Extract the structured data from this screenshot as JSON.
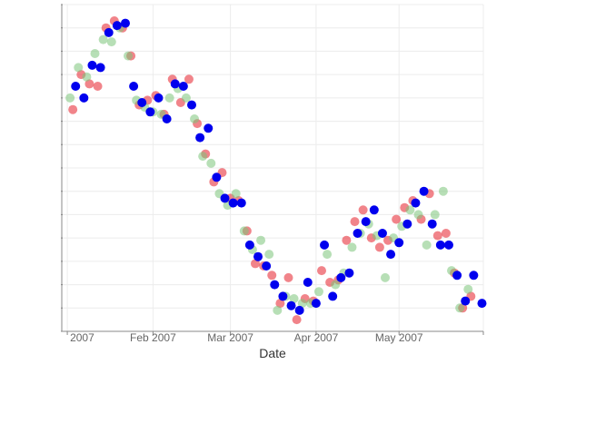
{
  "chart_data": {
    "type": "scatter",
    "title": "",
    "xlabel": "Date",
    "ylabel": "",
    "x_ticks": [
      {
        "date": "2007-01-01",
        "label": "2007"
      },
      {
        "date": "2007-02-01",
        "label": "Feb 2007"
      },
      {
        "date": "2007-03-01",
        "label": "Mar 2007"
      },
      {
        "date": "2007-04-01",
        "label": "Apr 2007"
      },
      {
        "date": "2007-05-01",
        "label": "May 2007"
      }
    ],
    "xlim": [
      "2007-01-01",
      "2007-05-31"
    ],
    "ylim": [
      0,
      14
    ],
    "y_tick_count": 14,
    "y_tick_labels_visible": false,
    "grid": true,
    "legend": "none",
    "series": [
      {
        "color": "#e8323c",
        "opacity": 0.6,
        "points": [
          [
            "2007-01-03",
            9.5
          ],
          [
            "2007-01-06",
            11.0
          ],
          [
            "2007-01-09",
            10.6
          ],
          [
            "2007-01-12",
            10.5
          ],
          [
            "2007-01-15",
            13.0
          ],
          [
            "2007-01-18",
            13.3
          ],
          [
            "2007-01-21",
            13.0
          ],
          [
            "2007-01-24",
            11.8
          ],
          [
            "2007-01-27",
            9.7
          ],
          [
            "2007-01-30",
            9.9
          ],
          [
            "2007-02-02",
            10.1
          ],
          [
            "2007-02-05",
            9.3
          ],
          [
            "2007-02-08",
            10.8
          ],
          [
            "2007-02-11",
            9.8
          ],
          [
            "2007-02-14",
            10.8
          ],
          [
            "2007-02-17",
            8.9
          ],
          [
            "2007-02-20",
            7.6
          ],
          [
            "2007-02-23",
            6.4
          ],
          [
            "2007-02-26",
            6.8
          ],
          [
            "2007-03-01",
            5.7
          ],
          [
            "2007-03-04",
            5.6
          ],
          [
            "2007-03-07",
            4.3
          ],
          [
            "2007-03-10",
            2.9
          ],
          [
            "2007-03-13",
            2.8
          ],
          [
            "2007-03-16",
            2.4
          ],
          [
            "2007-03-19",
            1.2
          ],
          [
            "2007-03-22",
            2.3
          ],
          [
            "2007-03-25",
            0.5
          ],
          [
            "2007-03-28",
            1.4
          ],
          [
            "2007-03-31",
            1.3
          ],
          [
            "2007-04-03",
            2.6
          ],
          [
            "2007-04-06",
            2.1
          ],
          [
            "2007-04-09",
            2.2
          ],
          [
            "2007-04-12",
            3.9
          ],
          [
            "2007-04-15",
            4.7
          ],
          [
            "2007-04-18",
            5.2
          ],
          [
            "2007-04-21",
            4.0
          ],
          [
            "2007-04-24",
            3.6
          ],
          [
            "2007-04-27",
            3.9
          ],
          [
            "2007-04-30",
            4.8
          ],
          [
            "2007-05-03",
            5.3
          ],
          [
            "2007-05-06",
            5.6
          ],
          [
            "2007-05-09",
            4.8
          ],
          [
            "2007-05-12",
            5.9
          ],
          [
            "2007-05-15",
            4.1
          ],
          [
            "2007-05-18",
            4.2
          ],
          [
            "2007-05-21",
            2.5
          ],
          [
            "2007-05-24",
            1.0
          ],
          [
            "2007-05-27",
            1.5
          ]
        ]
      },
      {
        "color": "#7cc47a",
        "opacity": 0.55,
        "points": [
          [
            "2007-01-02",
            10.0
          ],
          [
            "2007-01-05",
            11.3
          ],
          [
            "2007-01-08",
            10.9
          ],
          [
            "2007-01-11",
            11.9
          ],
          [
            "2007-01-14",
            12.5
          ],
          [
            "2007-01-17",
            12.4
          ],
          [
            "2007-01-20",
            13.0
          ],
          [
            "2007-01-23",
            11.8
          ],
          [
            "2007-01-26",
            9.9
          ],
          [
            "2007-01-29",
            9.6
          ],
          [
            "2007-02-01",
            9.4
          ],
          [
            "2007-02-04",
            9.3
          ],
          [
            "2007-02-07",
            10.0
          ],
          [
            "2007-02-10",
            10.4
          ],
          [
            "2007-02-13",
            10.0
          ],
          [
            "2007-02-16",
            9.1
          ],
          [
            "2007-02-19",
            7.5
          ],
          [
            "2007-02-22",
            7.2
          ],
          [
            "2007-02-25",
            5.9
          ],
          [
            "2007-02-28",
            5.4
          ],
          [
            "2007-03-03",
            5.9
          ],
          [
            "2007-03-06",
            4.3
          ],
          [
            "2007-03-09",
            3.5
          ],
          [
            "2007-03-12",
            3.9
          ],
          [
            "2007-03-15",
            3.3
          ],
          [
            "2007-03-18",
            0.9
          ],
          [
            "2007-03-21",
            1.5
          ],
          [
            "2007-03-24",
            1.4
          ],
          [
            "2007-03-27",
            1.2
          ],
          [
            "2007-03-30",
            1.2
          ],
          [
            "2007-04-02",
            1.7
          ],
          [
            "2007-04-05",
            3.3
          ],
          [
            "2007-04-08",
            2.0
          ],
          [
            "2007-04-11",
            2.5
          ],
          [
            "2007-04-14",
            3.6
          ],
          [
            "2007-04-17",
            4.2
          ],
          [
            "2007-04-20",
            4.6
          ],
          [
            "2007-04-23",
            4.1
          ],
          [
            "2007-04-26",
            2.3
          ],
          [
            "2007-04-29",
            4.0
          ],
          [
            "2007-05-02",
            4.5
          ],
          [
            "2007-05-05",
            5.2
          ],
          [
            "2007-05-08",
            5.0
          ],
          [
            "2007-05-11",
            3.7
          ],
          [
            "2007-05-14",
            5.0
          ],
          [
            "2007-05-17",
            6.0
          ],
          [
            "2007-05-20",
            2.6
          ],
          [
            "2007-05-23",
            1.0
          ],
          [
            "2007-05-26",
            1.8
          ]
        ]
      },
      {
        "color": "#0000ee",
        "opacity": 1.0,
        "points": [
          [
            "2007-01-04",
            10.5
          ],
          [
            "2007-01-07",
            10.0
          ],
          [
            "2007-01-10",
            11.4
          ],
          [
            "2007-01-13",
            11.3
          ],
          [
            "2007-01-16",
            12.8
          ],
          [
            "2007-01-19",
            13.1
          ],
          [
            "2007-01-22",
            13.2
          ],
          [
            "2007-01-25",
            10.5
          ],
          [
            "2007-01-28",
            9.8
          ],
          [
            "2007-01-31",
            9.4
          ],
          [
            "2007-02-03",
            10.0
          ],
          [
            "2007-02-06",
            9.1
          ],
          [
            "2007-02-09",
            10.6
          ],
          [
            "2007-02-12",
            10.5
          ],
          [
            "2007-02-15",
            9.7
          ],
          [
            "2007-02-18",
            8.3
          ],
          [
            "2007-02-21",
            8.7
          ],
          [
            "2007-02-24",
            6.6
          ],
          [
            "2007-02-27",
            5.7
          ],
          [
            "2007-03-02",
            5.5
          ],
          [
            "2007-03-05",
            5.5
          ],
          [
            "2007-03-08",
            3.7
          ],
          [
            "2007-03-11",
            3.2
          ],
          [
            "2007-03-14",
            2.8
          ],
          [
            "2007-03-17",
            2.0
          ],
          [
            "2007-03-20",
            1.5
          ],
          [
            "2007-03-23",
            1.1
          ],
          [
            "2007-03-26",
            0.9
          ],
          [
            "2007-03-29",
            2.1
          ],
          [
            "2007-04-01",
            1.2
          ],
          [
            "2007-04-04",
            3.7
          ],
          [
            "2007-04-07",
            1.5
          ],
          [
            "2007-04-10",
            2.3
          ],
          [
            "2007-04-13",
            2.5
          ],
          [
            "2007-04-16",
            4.2
          ],
          [
            "2007-04-19",
            4.7
          ],
          [
            "2007-04-22",
            5.2
          ],
          [
            "2007-04-25",
            4.2
          ],
          [
            "2007-04-28",
            3.3
          ],
          [
            "2007-05-01",
            3.8
          ],
          [
            "2007-05-04",
            4.6
          ],
          [
            "2007-05-07",
            5.5
          ],
          [
            "2007-05-10",
            6.0
          ],
          [
            "2007-05-13",
            4.6
          ],
          [
            "2007-05-16",
            3.7
          ],
          [
            "2007-05-19",
            3.7
          ],
          [
            "2007-05-22",
            2.4
          ],
          [
            "2007-05-25",
            1.3
          ],
          [
            "2007-05-28",
            2.4
          ],
          [
            "2007-05-31",
            1.2
          ]
        ]
      }
    ]
  }
}
